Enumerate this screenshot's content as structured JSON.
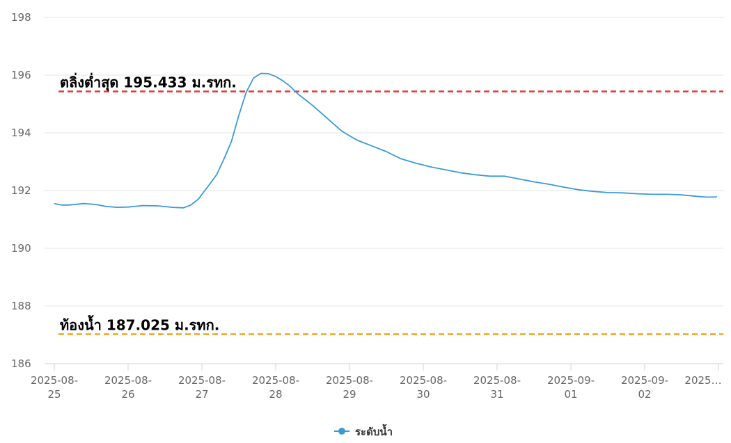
{
  "chart_data": {
    "type": "line",
    "ylim": [
      186,
      198
    ],
    "yticks": [
      "198",
      "196",
      "194",
      "192",
      "190",
      "188",
      "186"
    ],
    "xlabels": [
      [
        "2025-08-",
        "25"
      ],
      [
        "2025-08-",
        "26"
      ],
      [
        "2025-08-",
        "27"
      ],
      [
        "2025-08-",
        "28"
      ],
      [
        "2025-08-",
        "29"
      ],
      [
        "2025-08-",
        "30"
      ],
      [
        "2025-08-",
        "31"
      ],
      [
        "2025-09-",
        "01"
      ],
      [
        "2025-09-",
        "02"
      ],
      [
        "2025…",
        ""
      ]
    ],
    "grid": true,
    "legend_position": "bottom-center",
    "series": [
      {
        "name": "ระดับน้ำ",
        "color": "#3a9ad9",
        "points": [
          [
            0.0,
            191.55
          ],
          [
            0.1,
            191.5
          ],
          [
            0.2,
            191.5
          ],
          [
            0.4,
            191.55
          ],
          [
            0.55,
            191.52
          ],
          [
            0.7,
            191.45
          ],
          [
            0.85,
            191.42
          ],
          [
            1.0,
            191.43
          ],
          [
            1.2,
            191.48
          ],
          [
            1.4,
            191.47
          ],
          [
            1.6,
            191.42
          ],
          [
            1.75,
            191.4
          ],
          [
            1.85,
            191.5
          ],
          [
            1.95,
            191.7
          ],
          [
            2.1,
            192.2
          ],
          [
            2.2,
            192.55
          ],
          [
            2.3,
            193.1
          ],
          [
            2.4,
            193.7
          ],
          [
            2.5,
            194.6
          ],
          [
            2.6,
            195.4
          ],
          [
            2.7,
            195.9
          ],
          [
            2.8,
            196.06
          ],
          [
            2.9,
            196.05
          ],
          [
            3.0,
            195.95
          ],
          [
            3.1,
            195.8
          ],
          [
            3.2,
            195.6
          ],
          [
            3.3,
            195.35
          ],
          [
            3.5,
            194.95
          ],
          [
            3.7,
            194.5
          ],
          [
            3.9,
            194.05
          ],
          [
            4.1,
            193.75
          ],
          [
            4.3,
            193.55
          ],
          [
            4.5,
            193.35
          ],
          [
            4.7,
            193.1
          ],
          [
            4.9,
            192.95
          ],
          [
            5.1,
            192.82
          ],
          [
            5.3,
            192.72
          ],
          [
            5.5,
            192.62
          ],
          [
            5.7,
            192.55
          ],
          [
            5.9,
            192.5
          ],
          [
            6.1,
            192.5
          ],
          [
            6.3,
            192.4
          ],
          [
            6.5,
            192.3
          ],
          [
            6.7,
            192.22
          ],
          [
            6.9,
            192.12
          ],
          [
            7.1,
            192.03
          ],
          [
            7.3,
            191.97
          ],
          [
            7.5,
            191.93
          ],
          [
            7.7,
            191.92
          ],
          [
            7.9,
            191.89
          ],
          [
            8.1,
            191.87
          ],
          [
            8.3,
            191.87
          ],
          [
            8.5,
            191.85
          ],
          [
            8.7,
            191.8
          ],
          [
            8.85,
            191.77
          ],
          [
            8.98,
            191.78
          ]
        ]
      }
    ],
    "reference_lines": [
      {
        "label": "ตลิ่งต่ำสุด 195.433 ม.รทก.",
        "value": 195.433,
        "color": "#e53935"
      },
      {
        "label": "ท้องน้ำ 187.025 ม.รทก.",
        "value": 187.025,
        "color": "#f2a31b"
      }
    ]
  }
}
